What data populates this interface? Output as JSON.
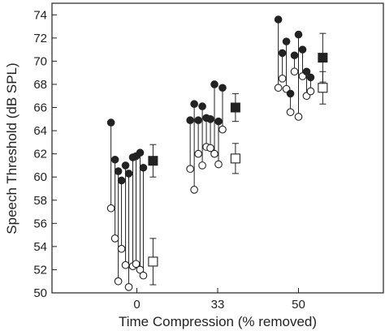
{
  "chart_data": {
    "type": "scatter",
    "title": "",
    "xlabel": "Time Compression (% removed)",
    "ylabel": "Speech Threshold (dB SPL)",
    "ylim": [
      50,
      75
    ],
    "yticks": [
      50,
      52,
      54,
      56,
      58,
      60,
      62,
      64,
      66,
      68,
      70,
      72,
      74
    ],
    "xticks": [
      {
        "label": "0",
        "pos": 0
      },
      {
        "label": "33",
        "pos": 1
      },
      {
        "label": "50",
        "pos": 2
      }
    ],
    "xlim": [
      -1.05,
      3.05
    ],
    "grid": false,
    "legend": "none",
    "series": [
      {
        "marker": "filled-circle",
        "points": [
          {
            "x": -0.32,
            "y": 64.7
          },
          {
            "x": -0.27,
            "y": 61.5
          },
          {
            "x": -0.23,
            "y": 60.5
          },
          {
            "x": -0.19,
            "y": 59.7
          },
          {
            "x": -0.14,
            "y": 61.0
          },
          {
            "x": -0.1,
            "y": 60.3
          },
          {
            "x": -0.05,
            "y": 61.7
          },
          {
            "x": -0.01,
            "y": 61.8
          },
          {
            "x": 0.04,
            "y": 62.1
          },
          {
            "x": 0.08,
            "y": 60.8
          },
          {
            "x": 0.66,
            "y": 64.9
          },
          {
            "x": 0.71,
            "y": 66.3
          },
          {
            "x": 0.76,
            "y": 64.9
          },
          {
            "x": 0.81,
            "y": 66.1
          },
          {
            "x": 0.86,
            "y": 65.1
          },
          {
            "x": 0.91,
            "y": 65.0
          },
          {
            "x": 0.96,
            "y": 68.0
          },
          {
            "x": 1.01,
            "y": 64.8
          },
          {
            "x": 1.06,
            "y": 67.7
          },
          {
            "x": 1.75,
            "y": 73.6
          },
          {
            "x": 1.8,
            "y": 70.7
          },
          {
            "x": 1.85,
            "y": 71.7
          },
          {
            "x": 1.9,
            "y": 67.2
          },
          {
            "x": 1.95,
            "y": 70.5
          },
          {
            "x": 2.0,
            "y": 72.3
          },
          {
            "x": 2.05,
            "y": 71.0
          },
          {
            "x": 2.1,
            "y": 69.1
          },
          {
            "x": 2.15,
            "y": 68.6
          }
        ]
      },
      {
        "marker": "open-circle",
        "points": [
          {
            "x": -0.32,
            "y": 57.3
          },
          {
            "x": -0.27,
            "y": 54.7
          },
          {
            "x": -0.23,
            "y": 51.0
          },
          {
            "x": -0.19,
            "y": 53.8
          },
          {
            "x": -0.14,
            "y": 52.4
          },
          {
            "x": -0.1,
            "y": 50.5
          },
          {
            "x": -0.05,
            "y": 52.3
          },
          {
            "x": -0.01,
            "y": 52.5
          },
          {
            "x": 0.04,
            "y": 52.0
          },
          {
            "x": 0.08,
            "y": 51.5
          },
          {
            "x": 0.66,
            "y": 60.7
          },
          {
            "x": 0.71,
            "y": 58.9
          },
          {
            "x": 0.76,
            "y": 62.0
          },
          {
            "x": 0.81,
            "y": 61.0
          },
          {
            "x": 0.86,
            "y": 62.6
          },
          {
            "x": 0.91,
            "y": 62.5
          },
          {
            "x": 0.96,
            "y": 62.0
          },
          {
            "x": 1.01,
            "y": 61.1
          },
          {
            "x": 1.06,
            "y": 64.1
          },
          {
            "x": 1.75,
            "y": 67.7
          },
          {
            "x": 1.8,
            "y": 68.5
          },
          {
            "x": 1.85,
            "y": 67.6
          },
          {
            "x": 1.9,
            "y": 65.6
          },
          {
            "x": 1.95,
            "y": 69.1
          },
          {
            "x": 2.0,
            "y": 65.2
          },
          {
            "x": 2.05,
            "y": 68.7
          },
          {
            "x": 2.1,
            "y": 67.0
          },
          {
            "x": 2.15,
            "y": 67.4
          }
        ]
      },
      {
        "marker": "filled-square",
        "points": [
          {
            "x": 0.2,
            "y": 61.4,
            "err": 1.4
          },
          {
            "x": 1.22,
            "y": 66.0,
            "err": 1.2
          },
          {
            "x": 2.3,
            "y": 70.3,
            "err": 2.1
          }
        ]
      },
      {
        "marker": "open-square",
        "points": [
          {
            "x": 0.2,
            "y": 52.7,
            "err": 2.0
          },
          {
            "x": 1.22,
            "y": 61.6,
            "err": 1.3
          },
          {
            "x": 2.3,
            "y": 67.7,
            "err": 1.4
          }
        ]
      }
    ]
  }
}
